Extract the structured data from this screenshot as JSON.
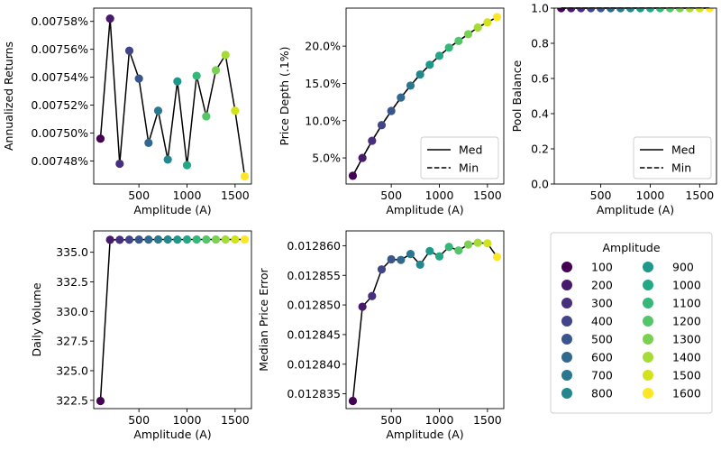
{
  "amplitudes": [
    100,
    200,
    300,
    400,
    500,
    600,
    700,
    800,
    900,
    1000,
    1100,
    1200,
    1300,
    1400,
    1500,
    1600
  ],
  "palette": [
    "#440154",
    "#481a6c",
    "#472f7d",
    "#414487",
    "#39568c",
    "#31688e",
    "#2a788e",
    "#23888e",
    "#1f988b",
    "#22a884",
    "#35b779",
    "#54c568",
    "#7ad151",
    "#a5db36",
    "#d2e21b",
    "#fde725"
  ],
  "legend": {
    "title": "Amplitude",
    "labels": [
      "100",
      "200",
      "300",
      "400",
      "500",
      "600",
      "700",
      "800",
      "900",
      "1000",
      "1100",
      "1200",
      "1300",
      "1400",
      "1500",
      "1600"
    ]
  },
  "chart_data": [
    {
      "id": "annualized-returns",
      "type": "scatter",
      "xlabel": "Amplitude (A)",
      "ylabel": "Annualized Returns",
      "xlim": [
        30,
        1670
      ],
      "ylim": [
        0.0074635,
        0.0075895
      ],
      "xticks": [
        500,
        1000,
        1500
      ],
      "xtick_labels": [
        "500",
        "1000",
        "1500"
      ],
      "yticks": [
        0.00748,
        0.0075,
        0.00752,
        0.00754,
        0.00756,
        0.00758
      ],
      "ytick_labels": [
        "0.00748%",
        "0.00750%",
        "0.00752%",
        "0.00754%",
        "0.00756%",
        "0.00758%"
      ],
      "series": [
        {
          "style": "line",
          "y": [
            0.007496,
            0.007582,
            0.007478,
            0.007559,
            0.007539,
            0.007493,
            0.007516,
            0.007481,
            0.007537,
            0.007477,
            0.007541,
            0.007512,
            0.007545,
            0.007556,
            0.007516,
            0.007469
          ]
        }
      ],
      "points": [
        0.007496,
        0.007582,
        0.007478,
        0.007559,
        0.007539,
        0.007493,
        0.007516,
        0.007481,
        0.007537,
        0.007477,
        0.007541,
        0.007512,
        0.007545,
        0.007556,
        0.007516,
        0.007469
      ]
    },
    {
      "id": "price-depth",
      "type": "scatter",
      "xlabel": "Amplitude (A)",
      "ylabel": "Price Depth (.1%)",
      "xlim": [
        30,
        1670
      ],
      "ylim": [
        1.5,
        25.1
      ],
      "xticks": [
        500,
        1000,
        1500
      ],
      "xtick_labels": [
        "500",
        "1000",
        "1500"
      ],
      "yticks": [
        5,
        10,
        15,
        20
      ],
      "ytick_labels": [
        "5.0%",
        "10.0%",
        "15.0%",
        "20.0%"
      ],
      "series": [
        {
          "name": "Med",
          "style": "line",
          "y": [
            2.6,
            5.0,
            7.3,
            9.4,
            11.3,
            13.1,
            14.7,
            16.2,
            17.5,
            18.7,
            19.8,
            20.7,
            21.6,
            22.5,
            23.2,
            23.9
          ]
        },
        {
          "name": "Min",
          "style": "dashed",
          "y": [
            2.6,
            5.0,
            7.3,
            9.4,
            11.3,
            13.1,
            14.7,
            16.2,
            17.5,
            18.7,
            19.8,
            20.7,
            21.6,
            22.5,
            23.2,
            23.9
          ]
        }
      ],
      "points": [
        2.6,
        5.0,
        7.3,
        9.4,
        11.3,
        13.1,
        14.7,
        16.2,
        17.5,
        18.7,
        19.8,
        20.7,
        21.6,
        22.5,
        23.2,
        23.9
      ],
      "legend": {
        "placement": "lower-right",
        "entries": [
          "Med",
          "Min"
        ]
      }
    },
    {
      "id": "pool-balance",
      "type": "scatter",
      "xlabel": "Amplitude (A)",
      "ylabel": "Pool Balance",
      "xlim": [
        30,
        1670
      ],
      "ylim": [
        0,
        1
      ],
      "xticks": [
        500,
        1000,
        1500
      ],
      "xtick_labels": [
        "500",
        "1000",
        "1500"
      ],
      "yticks": [
        0,
        0.2,
        0.4,
        0.6,
        0.8,
        1.0
      ],
      "ytick_labels": [
        "0.0",
        "0.2",
        "0.4",
        "0.6",
        "0.8",
        "1.0"
      ],
      "series": [
        {
          "name": "Med",
          "style": "line",
          "y": [
            1,
            1,
            1,
            1,
            1,
            1,
            1,
            1,
            1,
            1,
            1,
            1,
            1,
            1,
            1,
            1
          ]
        },
        {
          "name": "Min",
          "style": "dashed",
          "y": [
            1,
            1,
            1,
            1,
            1,
            1,
            1,
            1,
            1,
            1,
            1,
            1,
            1,
            1,
            1,
            1
          ]
        }
      ],
      "points": [
        1,
        1,
        1,
        1,
        1,
        1,
        1,
        1,
        1,
        1,
        1,
        1,
        1,
        1,
        1,
        1
      ],
      "legend": {
        "placement": "lower-right",
        "entries": [
          "Med",
          "Min"
        ]
      }
    },
    {
      "id": "daily-volume",
      "type": "scatter",
      "xlabel": "Amplitude (A)",
      "ylabel": "Daily Volume",
      "xlim": [
        30,
        1670
      ],
      "ylim": [
        321.8,
        336.8
      ],
      "xticks": [
        500,
        1000,
        1500
      ],
      "xtick_labels": [
        "500",
        "1000",
        "1500"
      ],
      "yticks": [
        322.5,
        325,
        327.5,
        330,
        332.5,
        335
      ],
      "ytick_labels": [
        "322.5",
        "325.0",
        "327.5",
        "330.0",
        "332.5",
        "335.0"
      ],
      "series": [
        {
          "style": "line",
          "y": [
            322.45,
            336.05,
            336.05,
            336.06,
            336.07,
            336.07,
            336.08,
            336.08,
            336.07,
            336.08,
            336.08,
            336.08,
            336.08,
            336.08,
            336.08,
            336.08
          ]
        }
      ],
      "points": [
        322.45,
        336.05,
        336.05,
        336.06,
        336.07,
        336.07,
        336.08,
        336.08,
        336.07,
        336.08,
        336.08,
        336.08,
        336.08,
        336.08,
        336.08,
        336.08
      ]
    },
    {
      "id": "median-price-error",
      "type": "scatter",
      "xlabel": "Amplitude (A)",
      "ylabel": "Median Price Error",
      "xlim": [
        30,
        1670
      ],
      "ylim": [
        0.0128325,
        0.0128625
      ],
      "xticks": [
        500,
        1000,
        1500
      ],
      "xtick_labels": [
        "500",
        "1000",
        "1500"
      ],
      "yticks": [
        0.012835,
        0.01284,
        0.012845,
        0.01285,
        0.012855,
        0.01286
      ],
      "ytick_labels": [
        "0.012835",
        "0.012840",
        "0.012845",
        "0.012850",
        "0.012855",
        "0.012860"
      ],
      "series": [
        {
          "style": "line",
          "y": [
            0.0128338,
            0.0128497,
            0.0128515,
            0.012856,
            0.0128577,
            0.0128576,
            0.0128586,
            0.0128568,
            0.0128591,
            0.0128582,
            0.0128598,
            0.0128592,
            0.0128602,
            0.0128605,
            0.0128604,
            0.0128581
          ]
        }
      ],
      "points": [
        0.0128338,
        0.0128497,
        0.0128515,
        0.012856,
        0.0128577,
        0.0128576,
        0.0128586,
        0.0128568,
        0.0128591,
        0.0128582,
        0.0128598,
        0.0128592,
        0.0128602,
        0.0128605,
        0.0128604,
        0.0128581
      ]
    }
  ]
}
